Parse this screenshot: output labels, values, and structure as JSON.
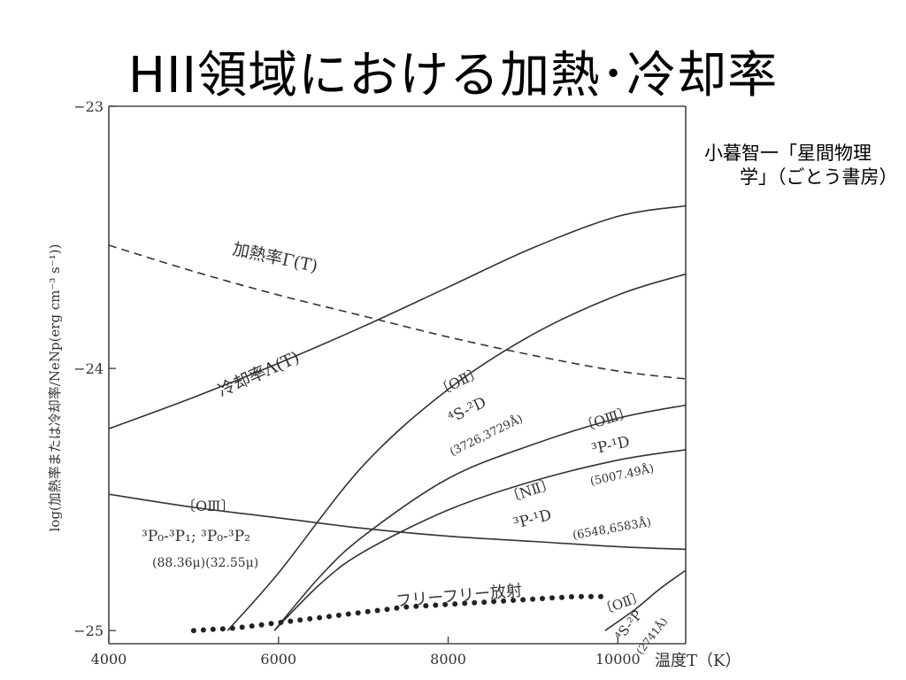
{
  "slide": {
    "title": "HII領域における加熱･冷却率",
    "citation_line1": "小暮智一「星間物理",
    "citation_line2": "学」（ごとう書房）"
  },
  "chart_data": {
    "type": "line",
    "xlabel": "温度T（K）",
    "ylabel": "log(加熱率または冷却率/NeNp(erg cm⁻³ s⁻¹))",
    "xlim": [
      4000,
      10800
    ],
    "ylim": [
      -25.05,
      -23.0
    ],
    "xticks": [
      4000,
      6000,
      8000,
      10000
    ],
    "xtick_labels": [
      "4000",
      "6000",
      "8000",
      "10000"
    ],
    "yticks": [
      -23,
      -24,
      -25
    ],
    "ytick_labels": [
      "−23",
      "−24",
      "−25"
    ],
    "grid": false,
    "series": [
      {
        "name": "加熱率Γ(T)",
        "style": "dashed",
        "x": [
          4000,
          5000,
          6000,
          7000,
          8000,
          9000,
          10000,
          10800
        ],
        "y": [
          -23.53,
          -23.63,
          -23.72,
          -23.8,
          -23.88,
          -23.95,
          -24.01,
          -24.04
        ]
      },
      {
        "name": "冷却率Λ(T)",
        "style": "solid",
        "x": [
          4000,
          5000,
          6000,
          7000,
          8000,
          9000,
          10000,
          10800
        ],
        "y": [
          -24.23,
          -24.11,
          -23.98,
          -23.84,
          -23.69,
          -23.54,
          -23.42,
          -23.38
        ]
      },
      {
        "name": "[OII] ⁴S-²D",
        "style": "solid",
        "x": [
          5400,
          6000,
          7000,
          8000,
          9000,
          10000,
          10800
        ],
        "y": [
          -25.0,
          -24.78,
          -24.37,
          -24.08,
          -23.87,
          -23.72,
          -23.64
        ]
      },
      {
        "name": "[OIII] ³P-¹D",
        "style": "solid",
        "x": [
          5950,
          6500,
          7000,
          8000,
          9000,
          10000,
          10800
        ],
        "y": [
          -25.0,
          -24.79,
          -24.64,
          -24.42,
          -24.29,
          -24.19,
          -24.14
        ]
      },
      {
        "name": "[NII] ³P-¹D",
        "style": "solid",
        "x": [
          5950,
          6500,
          7000,
          8000,
          9000,
          10000,
          10800
        ],
        "y": [
          -25.0,
          -24.82,
          -24.7,
          -24.54,
          -24.43,
          -24.35,
          -24.31
        ]
      },
      {
        "name": "[OIII] ³P₀-³P₁; ³P₀-³P₂",
        "style": "solid",
        "x": [
          4000,
          5000,
          6000,
          7000,
          8000,
          9000,
          10000,
          10800
        ],
        "y": [
          -24.48,
          -24.53,
          -24.57,
          -24.61,
          -24.64,
          -24.66,
          -24.68,
          -24.69
        ]
      },
      {
        "name": "フリーフリー放射",
        "style": "dotted",
        "x": [
          5000,
          5500,
          6000,
          6500,
          7000,
          7500,
          8000,
          8500,
          9000,
          9500,
          9900
        ],
        "y": [
          -25.0,
          -24.99,
          -24.97,
          -24.95,
          -24.93,
          -24.91,
          -24.9,
          -24.89,
          -24.88,
          -24.87,
          -24.87
        ]
      },
      {
        "name": "[OII] ⁴S-²P",
        "style": "solid",
        "x": [
          9850,
          10200,
          10500,
          10800
        ],
        "y": [
          -25.0,
          -24.92,
          -24.84,
          -24.77
        ]
      }
    ],
    "annotations": [
      {
        "key": "heating",
        "text": "加熱率Γ(T)"
      },
      {
        "key": "cooling",
        "text": "冷却率Λ(T)"
      },
      {
        "key": "oii_name",
        "text": "〔OⅡ〕"
      },
      {
        "key": "oii_trans",
        "text": "⁴S-²D"
      },
      {
        "key": "oii_wl",
        "text": "(3726,3729Å)"
      },
      {
        "key": "oiii_name",
        "text": "〔OⅢ〕"
      },
      {
        "key": "oiii_trans",
        "text": "³P-¹D"
      },
      {
        "key": "oiii_wl",
        "text": "(5007.49Å)"
      },
      {
        "key": "nii_name",
        "text": "〔NⅡ〕"
      },
      {
        "key": "nii_trans",
        "text": "³P-¹D"
      },
      {
        "key": "nii_wl",
        "text": "(6548,6583Å)"
      },
      {
        "key": "oiii_ir_name",
        "text": "〔OⅢ〕"
      },
      {
        "key": "oiii_ir_trans",
        "text": "³P₀-³P₁; ³P₀-³P₂"
      },
      {
        "key": "oiii_ir_wl",
        "text": "(88.36μ)(32.55μ)"
      },
      {
        "key": "ff",
        "text": "フリーフリー放射"
      },
      {
        "key": "oii2_name",
        "text": "〔OⅡ〕"
      },
      {
        "key": "oii2_trans",
        "text": "⁴S-²P"
      },
      {
        "key": "oii2_wl",
        "text": "(2741Å)"
      }
    ]
  }
}
